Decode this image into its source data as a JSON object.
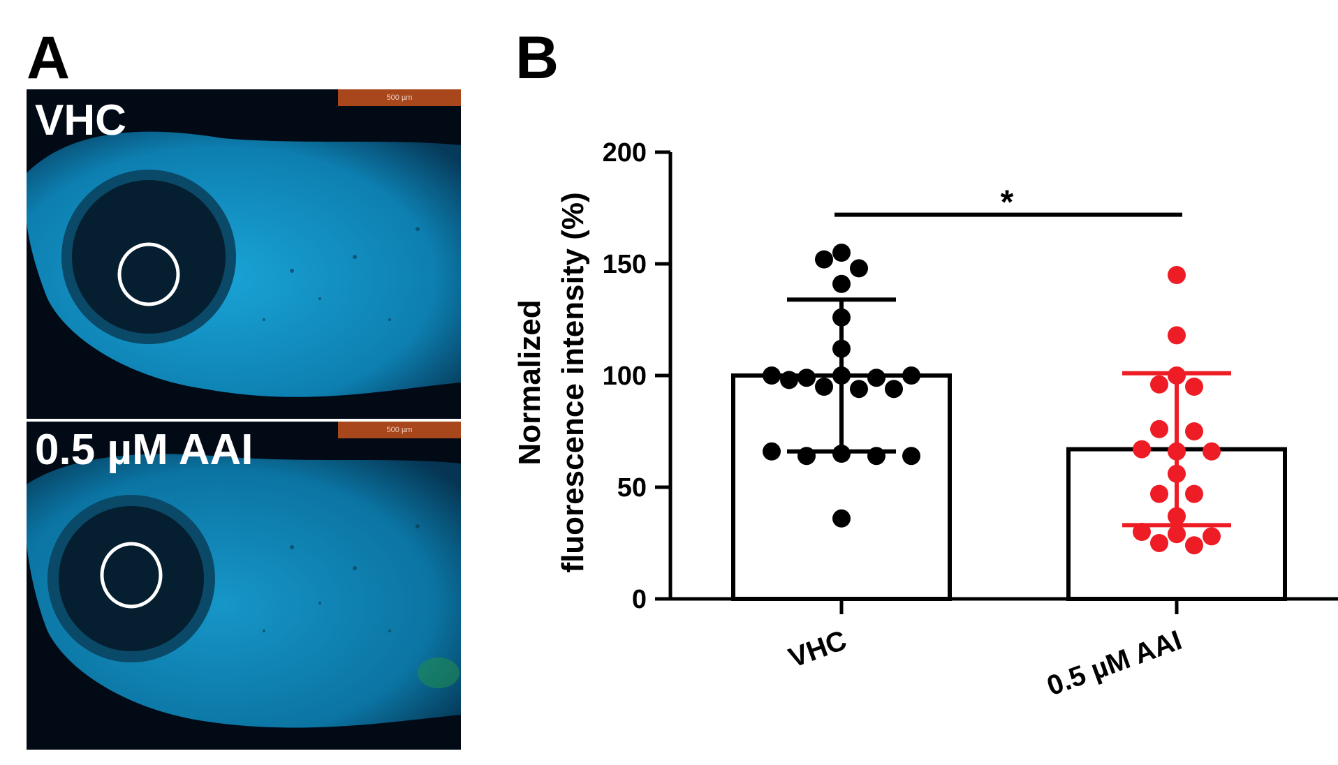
{
  "panels": {
    "a": {
      "letter": "A"
    },
    "b": {
      "letter": "B"
    }
  },
  "images": [
    {
      "label": "VHC",
      "scale_bar": "500 µm"
    },
    {
      "label": "0.5 µM AAI",
      "scale_bar": "500 µm"
    }
  ],
  "colors": {
    "vhc": "#000000",
    "aai": "#ee1c25",
    "fish_fluorescence": "#0a8fc0",
    "scale_bar": "#a8461c"
  },
  "chart_data": {
    "type": "bar",
    "title": "",
    "xlabel": "",
    "ylabel": [
      "Normalized",
      "fluorescence intensity (%)"
    ],
    "ylim": [
      0,
      200
    ],
    "yticks": [
      0,
      50,
      100,
      150,
      200
    ],
    "grid": false,
    "legend": "none",
    "categories": [
      "VHC",
      "0.5 µM AAI"
    ],
    "series": [
      {
        "values": [
          100,
          67
        ],
        "error_sd": [
          34,
          34
        ]
      }
    ],
    "points": [
      [
        152,
        148,
        155,
        141,
        126,
        112,
        98,
        100,
        99,
        100,
        99,
        100,
        95,
        94,
        94,
        66,
        64,
        65,
        64,
        64,
        36
      ],
      [
        145,
        118,
        100,
        96,
        95,
        76,
        75,
        67,
        66,
        66,
        56,
        47,
        47,
        37,
        30,
        29,
        28,
        25,
        24
      ]
    ],
    "significance": {
      "label": "*",
      "between": [
        0,
        1
      ]
    }
  }
}
